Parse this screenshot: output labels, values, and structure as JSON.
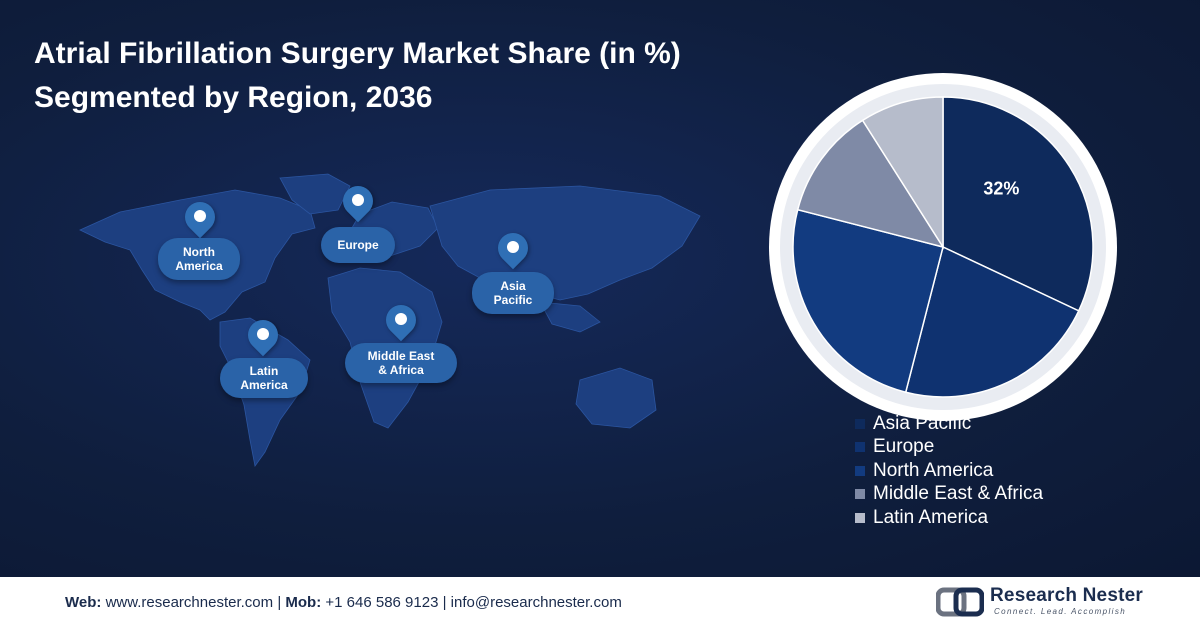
{
  "title": {
    "line1": "Atrial Fibrillation Surgery Market Share (in %)",
    "line2": "Segmented by Region, 2036"
  },
  "map": {
    "regions": [
      {
        "id": "north-america",
        "label": "North\nAmerica"
      },
      {
        "id": "europe",
        "label": "Europe"
      },
      {
        "id": "asia-pacific",
        "label": "Asia\nPacific"
      },
      {
        "id": "latin-america",
        "label": "Latin\nAmerica"
      },
      {
        "id": "middle-east-africa",
        "label": "Middle East\n& Africa"
      }
    ],
    "colors": {
      "land": "#1d3f80",
      "pin": "#2f6fb5",
      "label_bg": "#2a63a8"
    }
  },
  "chart_data": {
    "type": "pie",
    "title": "Atrial Fibrillation Surgery Market Share (in %) Segmented by Region, 2036",
    "slices": [
      {
        "name": "Asia Pacific",
        "value": 32,
        "label": "32%",
        "color": "#0e2a5c"
      },
      {
        "name": "Europe",
        "value": 22,
        "label": "",
        "color": "#0f3270"
      },
      {
        "name": "North America",
        "value": 25,
        "label": "",
        "color": "#123b80"
      },
      {
        "name": "Middle East & Africa",
        "value": 12,
        "label": "",
        "color": "#7f8aa6"
      },
      {
        "name": "Latin America",
        "value": 9,
        "label": "",
        "color": "#b6bccb"
      }
    ],
    "start_angle_deg": 0,
    "direction": "clockwise",
    "legend_position": "bottom-right"
  },
  "footer": {
    "web_label": "Web:",
    "web_value": "www.researchnester.com",
    "separator": "|",
    "mob_label": "Mob:",
    "mob_value": "+1 646 586 9123",
    "email": "info@researchnester.com"
  },
  "brand": {
    "name": "Research Nester",
    "tagline": "Connect. Lead. Accomplish",
    "icon": "research-nester-logo-icon"
  }
}
